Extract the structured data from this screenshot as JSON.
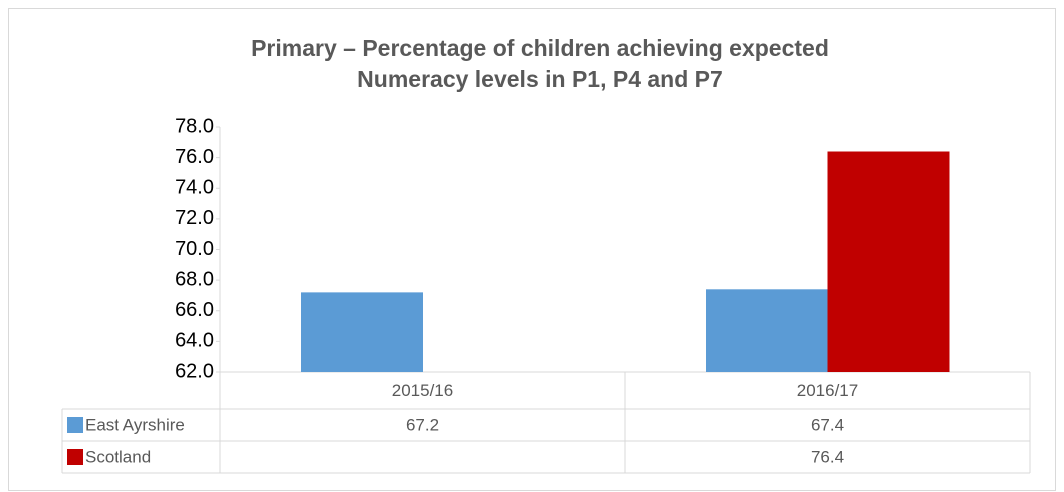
{
  "chart_data": {
    "type": "bar",
    "title": "Primary – Percentage of children achieving expected Numeracy levels in P1, P4 and P7",
    "categories": [
      "2015/16",
      "2016/17"
    ],
    "series": [
      {
        "name": "East Ayrshire",
        "color": "#5b9bd5",
        "values": [
          67.2,
          67.4
        ]
      },
      {
        "name": "Scotland",
        "color": "#c00000",
        "values": [
          null,
          76.4
        ]
      }
    ],
    "ylim": [
      62,
      78
    ],
    "yticks": [
      {
        "value": 62,
        "label": "62.0"
      },
      {
        "value": 64,
        "label": "64.0"
      },
      {
        "value": 66,
        "label": "66.0"
      },
      {
        "value": 68,
        "label": "68.0"
      },
      {
        "value": 70,
        "label": "70.0"
      },
      {
        "value": 72,
        "label": "72.0"
      },
      {
        "value": 74,
        "label": "74.0"
      },
      {
        "value": 76,
        "label": "76.0"
      },
      {
        "value": 78,
        "label": "78.0"
      }
    ],
    "data_table": true
  }
}
